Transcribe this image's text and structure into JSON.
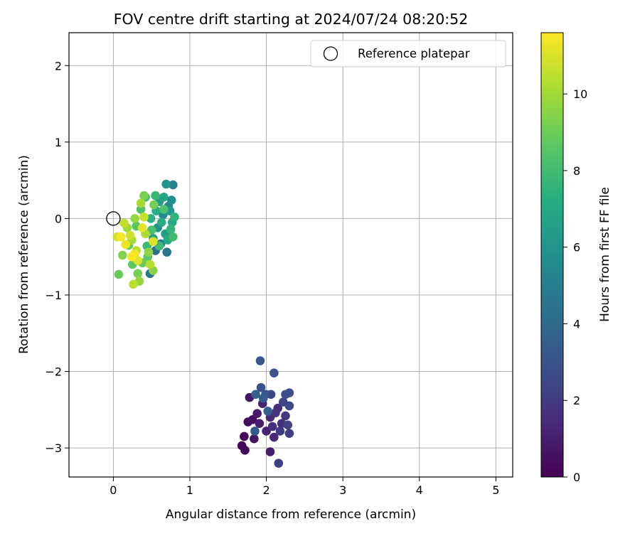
{
  "chart_data": {
    "type": "scatter",
    "title": "FOV centre drift starting at 2024/07/24 08:20:52",
    "xlabel": "Angular distance from reference (arcmin)",
    "ylabel": "Rotation from reference (arcmin)",
    "xlim": [
      -0.58,
      5.22
    ],
    "ylim": [
      -3.38,
      2.43
    ],
    "xticks": [
      0,
      1,
      2,
      3,
      4,
      5
    ],
    "xtick_labels": [
      "0",
      "1",
      "2",
      "3",
      "4",
      "5"
    ],
    "yticks": [
      -3,
      -2,
      -1,
      0,
      1,
      2
    ],
    "ytick_labels": [
      "−3",
      "−2",
      "−1",
      "0",
      "1",
      "2"
    ],
    "grid": true,
    "legend": {
      "position": "top-right",
      "entries": [
        "Reference platepar"
      ]
    },
    "reference_point": {
      "x": 0,
      "y": 0,
      "label": "Reference platepar",
      "marker": "open-circle"
    },
    "colorbar": {
      "label": "Hours from first FF file",
      "colormap": "viridis",
      "range": [
        0,
        11.6
      ],
      "ticks": [
        0,
        2,
        4,
        6,
        8,
        10
      ],
      "tick_labels": [
        "0",
        "2",
        "4",
        "6",
        "8",
        "10"
      ]
    },
    "series": [
      {
        "color_by": "hours",
        "points": [
          {
            "x": 1.72,
            "y": -3.03,
            "c": 0.1
          },
          {
            "x": 1.68,
            "y": -2.97,
            "c": 0.2
          },
          {
            "x": 1.71,
            "y": -2.85,
            "c": 0.3
          },
          {
            "x": 1.76,
            "y": -2.66,
            "c": 0.4
          },
          {
            "x": 1.82,
            "y": -2.63,
            "c": 0.5
          },
          {
            "x": 1.84,
            "y": -2.88,
            "c": 0.6
          },
          {
            "x": 1.78,
            "y": -2.34,
            "c": 0.7
          },
          {
            "x": 1.88,
            "y": -2.55,
            "c": 0.8
          },
          {
            "x": 2.05,
            "y": -3.05,
            "c": 0.9
          },
          {
            "x": 1.91,
            "y": -2.68,
            "c": 1.0
          },
          {
            "x": 1.95,
            "y": -2.42,
            "c": 1.1
          },
          {
            "x": 2.0,
            "y": -2.78,
            "c": 1.2
          },
          {
            "x": 2.1,
            "y": -2.86,
            "c": 1.3
          },
          {
            "x": 2.05,
            "y": -2.6,
            "c": 1.4
          },
          {
            "x": 2.15,
            "y": -2.48,
            "c": 1.5
          },
          {
            "x": 2.08,
            "y": -2.72,
            "c": 1.6
          },
          {
            "x": 2.2,
            "y": -2.68,
            "c": 1.7
          },
          {
            "x": 2.12,
            "y": -2.54,
            "c": 1.8
          },
          {
            "x": 2.25,
            "y": -2.58,
            "c": 1.9
          },
          {
            "x": 2.18,
            "y": -2.78,
            "c": 2.0
          },
          {
            "x": 2.3,
            "y": -2.81,
            "c": 2.1
          },
          {
            "x": 2.16,
            "y": -3.2,
            "c": 2.2
          },
          {
            "x": 2.28,
            "y": -2.7,
            "c": 2.3
          },
          {
            "x": 2.22,
            "y": -2.4,
            "c": 2.4
          },
          {
            "x": 2.06,
            "y": -2.3,
            "c": 2.5
          },
          {
            "x": 2.3,
            "y": -2.45,
            "c": 2.6
          },
          {
            "x": 2.25,
            "y": -2.3,
            "c": 2.7
          },
          {
            "x": 2.3,
            "y": -2.28,
            "c": 2.8
          },
          {
            "x": 1.93,
            "y": -2.21,
            "c": 2.9
          },
          {
            "x": 1.99,
            "y": -2.3,
            "c": 3.0
          },
          {
            "x": 2.1,
            "y": -2.02,
            "c": 3.1
          },
          {
            "x": 1.92,
            "y": -1.86,
            "c": 3.2
          },
          {
            "x": 1.85,
            "y": -2.78,
            "c": 3.3
          },
          {
            "x": 1.96,
            "y": -2.35,
            "c": 3.4
          },
          {
            "x": 2.02,
            "y": -2.52,
            "c": 3.5
          },
          {
            "x": 1.86,
            "y": -2.3,
            "c": 3.6
          },
          {
            "x": 0.55,
            "y": -0.42,
            "c": 4.2
          },
          {
            "x": 0.48,
            "y": -0.72,
            "c": 4.5
          },
          {
            "x": 0.7,
            "y": -0.44,
            "c": 4.7
          },
          {
            "x": 0.62,
            "y": -0.33,
            "c": 5.0
          },
          {
            "x": 0.78,
            "y": 0.44,
            "c": 5.2
          },
          {
            "x": 0.72,
            "y": 0.16,
            "c": 5.4
          },
          {
            "x": 0.65,
            "y": 0.05,
            "c": 5.6
          },
          {
            "x": 0.76,
            "y": 0.24,
            "c": 5.8
          },
          {
            "x": 0.58,
            "y": -0.12,
            "c": 6.0
          },
          {
            "x": 0.69,
            "y": 0.45,
            "c": 6.1
          },
          {
            "x": 0.74,
            "y": 0.1,
            "c": 6.2
          },
          {
            "x": 0.6,
            "y": 0.22,
            "c": 6.4
          },
          {
            "x": 0.68,
            "y": -0.2,
            "c": 6.5
          },
          {
            "x": 0.52,
            "y": -0.26,
            "c": 6.6
          },
          {
            "x": 0.66,
            "y": 0.28,
            "c": 6.8
          },
          {
            "x": 0.77,
            "y": -0.05,
            "c": 7.0
          },
          {
            "x": 0.71,
            "y": -0.28,
            "c": 7.1
          },
          {
            "x": 0.56,
            "y": 0.1,
            "c": 7.2
          },
          {
            "x": 0.63,
            "y": -0.05,
            "c": 7.3
          },
          {
            "x": 0.49,
            "y": 0.0,
            "c": 7.4
          },
          {
            "x": 0.8,
            "y": 0.02,
            "c": 7.5
          },
          {
            "x": 0.75,
            "y": -0.14,
            "c": 7.6
          },
          {
            "x": 0.55,
            "y": 0.3,
            "c": 7.7
          },
          {
            "x": 0.44,
            "y": -0.36,
            "c": 7.8
          },
          {
            "x": 0.6,
            "y": -0.36,
            "c": 7.9
          },
          {
            "x": 0.78,
            "y": -0.24,
            "c": 8.0
          },
          {
            "x": 0.42,
            "y": 0.28,
            "c": 8.1
          },
          {
            "x": 0.5,
            "y": -0.15,
            "c": 8.2
          },
          {
            "x": 0.66,
            "y": 0.12,
            "c": 8.3
          },
          {
            "x": 0.36,
            "y": 0.12,
            "c": 8.4
          },
          {
            "x": 0.3,
            "y": -0.1,
            "c": 8.5
          },
          {
            "x": 0.45,
            "y": -0.5,
            "c": 8.6
          },
          {
            "x": 0.25,
            "y": -0.6,
            "c": 8.7
          },
          {
            "x": 0.2,
            "y": -0.35,
            "c": 8.8
          },
          {
            "x": 0.07,
            "y": -0.73,
            "c": 8.9
          },
          {
            "x": 0.38,
            "y": -0.58,
            "c": 9.0
          },
          {
            "x": 0.53,
            "y": 0.18,
            "c": 9.1
          },
          {
            "x": 0.32,
            "y": -0.72,
            "c": 9.2
          },
          {
            "x": 0.4,
            "y": 0.3,
            "c": 9.3
          },
          {
            "x": 0.12,
            "y": -0.48,
            "c": 9.4
          },
          {
            "x": 0.52,
            "y": -0.68,
            "c": 9.5
          },
          {
            "x": 0.46,
            "y": -0.44,
            "c": 9.6
          },
          {
            "x": 0.28,
            "y": 0.0,
            "c": 9.7
          },
          {
            "x": 0.34,
            "y": -0.82,
            "c": 9.8
          },
          {
            "x": 0.18,
            "y": -0.12,
            "c": 9.9
          },
          {
            "x": 0.24,
            "y": -0.28,
            "c": 10.0
          },
          {
            "x": 0.36,
            "y": 0.2,
            "c": 10.1
          },
          {
            "x": 0.42,
            "y": -0.2,
            "c": 10.2
          },
          {
            "x": 0.48,
            "y": -0.6,
            "c": 10.3
          },
          {
            "x": 0.3,
            "y": -0.42,
            "c": 10.4
          },
          {
            "x": 0.26,
            "y": -0.86,
            "c": 10.5
          },
          {
            "x": 0.14,
            "y": -0.06,
            "c": 10.6
          },
          {
            "x": 0.4,
            "y": 0.02,
            "c": 10.7
          },
          {
            "x": 0.22,
            "y": -0.22,
            "c": 10.8
          },
          {
            "x": 0.05,
            "y": -0.24,
            "c": 10.9
          },
          {
            "x": 0.32,
            "y": -0.55,
            "c": 11.0
          },
          {
            "x": 0.52,
            "y": -0.3,
            "c": 11.1
          },
          {
            "x": 0.38,
            "y": -0.12,
            "c": 11.2
          },
          {
            "x": 0.16,
            "y": -0.34,
            "c": 11.3
          },
          {
            "x": 0.28,
            "y": -0.46,
            "c": 11.4
          },
          {
            "x": 0.1,
            "y": -0.24,
            "c": 11.5
          },
          {
            "x": 0.24,
            "y": -0.5,
            "c": 11.6
          }
        ]
      }
    ]
  }
}
